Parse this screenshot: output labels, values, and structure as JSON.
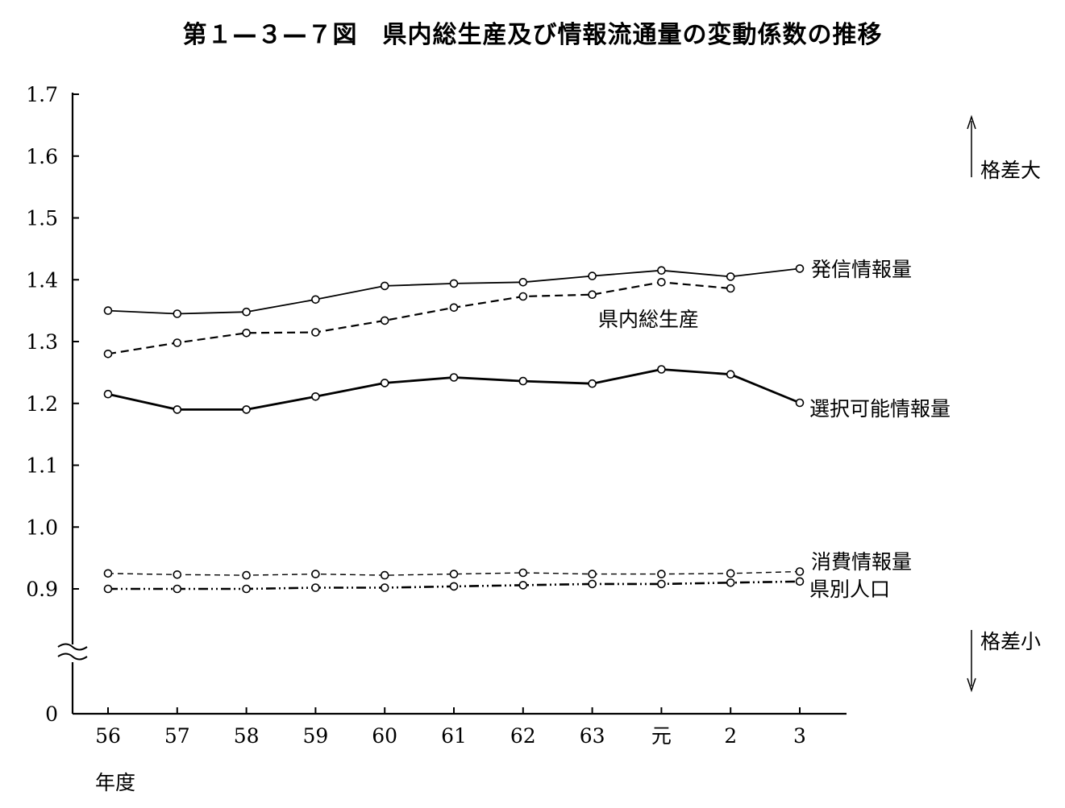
{
  "chart_data": {
    "type": "line",
    "title": "第１—３—７図　県内総生産及び情報流通量の変動係数の推移",
    "xlabel": "年度",
    "ylabel": "",
    "categories": [
      "56",
      "57",
      "58",
      "59",
      "60",
      "61",
      "62",
      "63",
      "元",
      "2",
      "3"
    ],
    "y_ticks": [
      "1.7",
      "1.6",
      "1.5",
      "1.4",
      "1.3",
      "1.2",
      "1.1",
      "1.0",
      "0.9",
      "0"
    ],
    "ylim": [
      0.9,
      1.7
    ],
    "axis_break": true,
    "grid": false,
    "annotations": {
      "up": "格差大",
      "down": "格差小"
    },
    "series": [
      {
        "name": "発信情報量",
        "style": "solid",
        "values": [
          1.35,
          1.345,
          1.348,
          1.368,
          1.39,
          1.394,
          1.396,
          1.406,
          1.415,
          1.405,
          1.418
        ]
      },
      {
        "name": "県内総生産",
        "style": "dashed",
        "values": [
          1.28,
          1.298,
          1.314,
          1.315,
          1.334,
          1.355,
          1.373,
          1.376,
          1.396,
          1.386,
          null
        ]
      },
      {
        "name": "選択可能情報量",
        "style": "solid-bold",
        "values": [
          1.215,
          1.19,
          1.19,
          1.211,
          1.233,
          1.242,
          1.236,
          1.232,
          1.255,
          1.247,
          1.201
        ]
      },
      {
        "name": "消費情報量",
        "style": "dashed-thin",
        "values": [
          0.925,
          0.923,
          0.922,
          0.924,
          0.922,
          0.924,
          0.926,
          0.924,
          0.924,
          0.925,
          0.928
        ]
      },
      {
        "name": "県別人口",
        "style": "dash-dot-dot",
        "values": [
          0.9,
          0.9,
          0.9,
          0.902,
          0.902,
          0.904,
          0.906,
          0.908,
          0.908,
          0.91,
          0.912
        ]
      }
    ]
  }
}
